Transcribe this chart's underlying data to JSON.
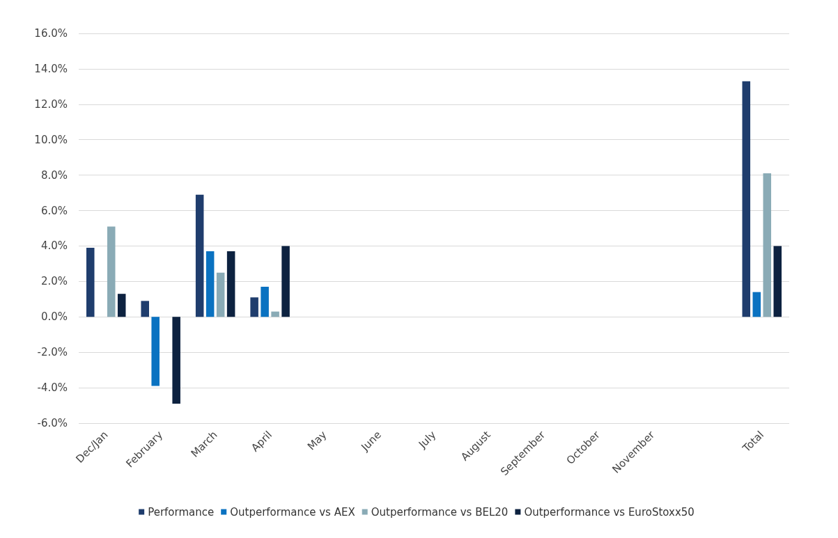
{
  "chart_data": {
    "type": "bar",
    "categories": [
      "Dec/Jan",
      "February",
      "March",
      "April",
      "May",
      "June",
      "July",
      "August",
      "September",
      "October",
      "November",
      null,
      "Total"
    ],
    "series": [
      {
        "name": "Performance",
        "color": "#1f3d6d",
        "values": [
          3.9,
          0.9,
          6.9,
          1.1,
          null,
          null,
          null,
          null,
          null,
          null,
          null,
          null,
          13.3
        ]
      },
      {
        "name": "Outperformance vs AEX",
        "color": "#0a72c1",
        "values": [
          null,
          -3.9,
          3.7,
          1.7,
          null,
          null,
          null,
          null,
          null,
          null,
          null,
          null,
          1.4
        ]
      },
      {
        "name": "Outperformance vs BEL20",
        "color": "#8aabb6",
        "values": [
          5.1,
          null,
          2.5,
          0.3,
          null,
          null,
          null,
          null,
          null,
          null,
          null,
          null,
          8.1
        ]
      },
      {
        "name": "Outperformance vs EuroStoxx50",
        "color": "#0d2240",
        "values": [
          1.3,
          -4.9,
          3.7,
          4.0,
          null,
          null,
          null,
          null,
          null,
          null,
          null,
          null,
          4.0
        ]
      }
    ],
    "ylim": [
      -6,
      16
    ],
    "yticks": [
      {
        "value": -6,
        "label": "-6.0%"
      },
      {
        "value": -4,
        "label": "-4.0%"
      },
      {
        "value": -2,
        "label": "-2.0%"
      },
      {
        "value": 0,
        "label": "0.0%"
      },
      {
        "value": 2,
        "label": "2.0%"
      },
      {
        "value": 4,
        "label": "4.0%"
      },
      {
        "value": 6,
        "label": "6.0%"
      },
      {
        "value": 8,
        "label": "8.0%"
      },
      {
        "value": 10,
        "label": "10.0%"
      },
      {
        "value": 12,
        "label": "12.0%"
      },
      {
        "value": 14,
        "label": "14.0%"
      },
      {
        "value": 16,
        "label": "16.0%"
      }
    ],
    "grid": "y",
    "legend": "bottom"
  }
}
